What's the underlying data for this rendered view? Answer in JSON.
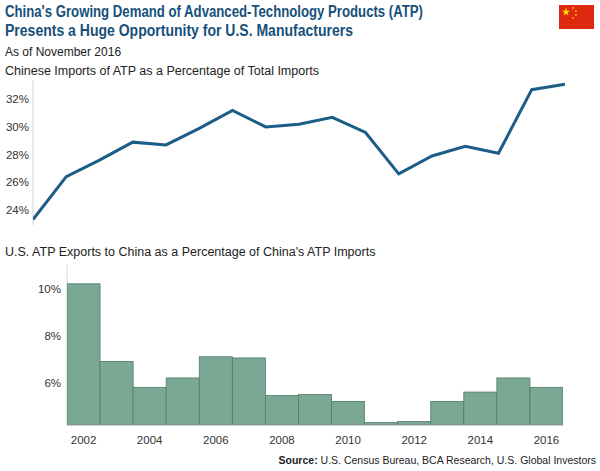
{
  "header": {
    "title_lines": [
      "China's Growing Demand of Advanced-Technology Products (ATP)",
      "Presents a Huge Opportunity for U.S. Manufacturers"
    ],
    "date_note": "As of November 2016"
  },
  "chart_data": [
    {
      "type": "line",
      "title": "Chinese Imports of ATP as a Percentage of Total Imports",
      "categories": [
        null,
        null,
        null,
        null,
        null,
        null,
        null,
        null,
        null,
        null,
        null,
        null,
        null,
        null,
        null,
        null,
        null
      ],
      "values": [
        23.3,
        26.4,
        27.6,
        28.9,
        28.7,
        29.9,
        31.2,
        30.0,
        30.2,
        30.7,
        29.6,
        26.6,
        27.9,
        28.6,
        28.1,
        32.7,
        33.1
      ],
      "color": "#1c5d87",
      "ylim": [
        22.9,
        33.4
      ],
      "yticks": [
        {
          "value": 24,
          "label": "24%"
        },
        {
          "value": 26,
          "label": "26%"
        },
        {
          "value": 28,
          "label": "28%"
        },
        {
          "value": 30,
          "label": "30%"
        },
        {
          "value": 32,
          "label": "32%"
        }
      ],
      "grid": false,
      "tick_labels": "y"
    },
    {
      "type": "bar",
      "title": "U.S. ATP Exports to China as a Percentage of China's ATP Imports",
      "categories": [
        "2002",
        null,
        "2004",
        null,
        "2006",
        null,
        "2008",
        null,
        "2010",
        null,
        "2012",
        null,
        "2014",
        null,
        "2016"
      ],
      "values": [
        10.2,
        6.9,
        5.8,
        6.2,
        7.1,
        7.05,
        5.45,
        5.5,
        5.2,
        4.3,
        4.35,
        5.2,
        5.6,
        6.2,
        5.8
      ],
      "color": "#7aa894",
      "ylim": [
        4.2,
        11
      ],
      "yticks": [
        {
          "value": 6,
          "label": "6%"
        },
        {
          "value": 8,
          "label": "8%"
        },
        {
          "value": 10,
          "label": "10%"
        }
      ],
      "grid": false
    }
  ],
  "footer": {
    "source": "Source: U.S. Census Bureau, BCA Research, U.S. Global Investors"
  }
}
